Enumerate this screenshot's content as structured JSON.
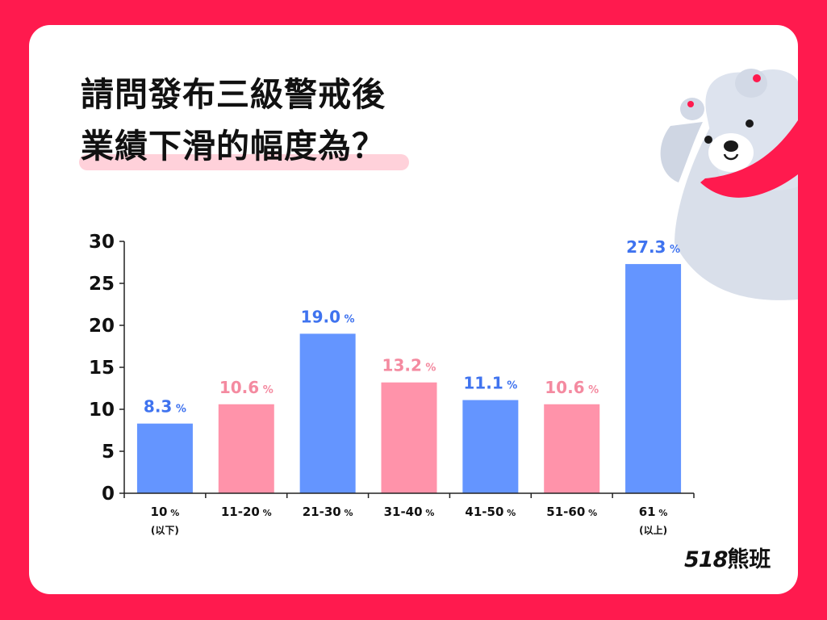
{
  "title": {
    "line1": "請問發布三級警戒後",
    "line2": "業績下滑的幅度為？"
  },
  "colors": {
    "background": "#ff1a4e",
    "card": "#ffffff",
    "blue": "#6495ff",
    "pink": "#ff93aa",
    "blue_label": "#3f73ef",
    "pink_label": "#f48aa0",
    "highlight": "#ffd1da"
  },
  "chart_data": {
    "type": "bar",
    "categories": [
      {
        "main": "10",
        "sub": "(以下)"
      },
      {
        "main": "11-20",
        "sub": ""
      },
      {
        "main": "21-30",
        "sub": ""
      },
      {
        "main": "31-40",
        "sub": ""
      },
      {
        "main": "41-50",
        "sub": ""
      },
      {
        "main": "51-60",
        "sub": ""
      },
      {
        "main": "61",
        "sub": "(以上)"
      }
    ],
    "category_unit": "%",
    "values": [
      8.3,
      10.6,
      19.0,
      13.2,
      11.1,
      10.6,
      27.3
    ],
    "value_labels": [
      "8.3",
      "10.6",
      "19.0",
      "13.2",
      "11.1",
      "10.6",
      "27.3"
    ],
    "value_unit": "%",
    "bar_colors": [
      "blue",
      "pink",
      "blue",
      "pink",
      "blue",
      "pink",
      "blue"
    ],
    "ylim": [
      0,
      30
    ],
    "yticks": [
      0,
      5,
      10,
      15,
      20,
      25,
      30
    ],
    "grid": false
  },
  "logo": {
    "number": "518",
    "name": "熊班"
  },
  "mascot_icon": "polar-bear-mascot-icon"
}
